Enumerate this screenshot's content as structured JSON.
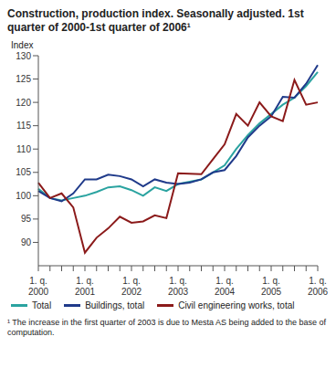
{
  "chart_data": {
    "type": "line",
    "title": "Construction, production index. Seasonally adjusted. 1st quarter of 2000-1st quarter of 2006¹",
    "y_label": "Index",
    "footnote": "¹ The increase in the first quarter of 2003 is due to Mesta AS being added to the base of computation.",
    "categories": [
      "1. q.\n2000",
      null,
      null,
      null,
      "1. q.\n2001",
      null,
      null,
      null,
      "1. q.\n2002",
      null,
      null,
      null,
      "1. q.\n2003",
      null,
      null,
      null,
      "1. q.\n2004",
      null,
      null,
      null,
      "1. q.\n2005",
      null,
      null,
      null,
      "1. q.\n2006"
    ],
    "series": [
      {
        "name": "Total",
        "color": "#2aa3a0",
        "values": [
          101.5,
          99.5,
          99,
          99.5,
          100,
          100.8,
          101.8,
          102,
          101.2,
          100,
          101.8,
          101,
          102.5,
          103,
          103.5,
          105,
          106.5,
          110,
          113,
          115.5,
          117.5,
          119.5,
          121,
          123.5,
          126.5
        ]
      },
      {
        "name": "Buildings, total",
        "color": "#1f3a8a",
        "values": [
          101,
          99.5,
          98.8,
          100.5,
          103.5,
          103.5,
          104.5,
          104.2,
          103.5,
          102,
          103.5,
          102.8,
          102.5,
          102.8,
          103.5,
          105,
          105.5,
          108.5,
          112.5,
          115,
          117,
          121.2,
          121,
          124,
          128
        ]
      },
      {
        "name": "Civil engineering works, total",
        "color": "#8b1a1a",
        "values": [
          102.8,
          99.5,
          100.5,
          97.5,
          87.8,
          91,
          93,
          95.5,
          94.2,
          94.5,
          95.8,
          95.2,
          104.8,
          104.7,
          104.6,
          107.8,
          111,
          117.5,
          115,
          120,
          117,
          116,
          124.8,
          119.5,
          120
        ]
      }
    ],
    "ylim": [
      85,
      130
    ],
    "yticks": [
      90,
      95,
      100,
      105,
      110,
      115,
      120,
      125,
      130
    ],
    "grid": false,
    "legend": "bottom"
  }
}
